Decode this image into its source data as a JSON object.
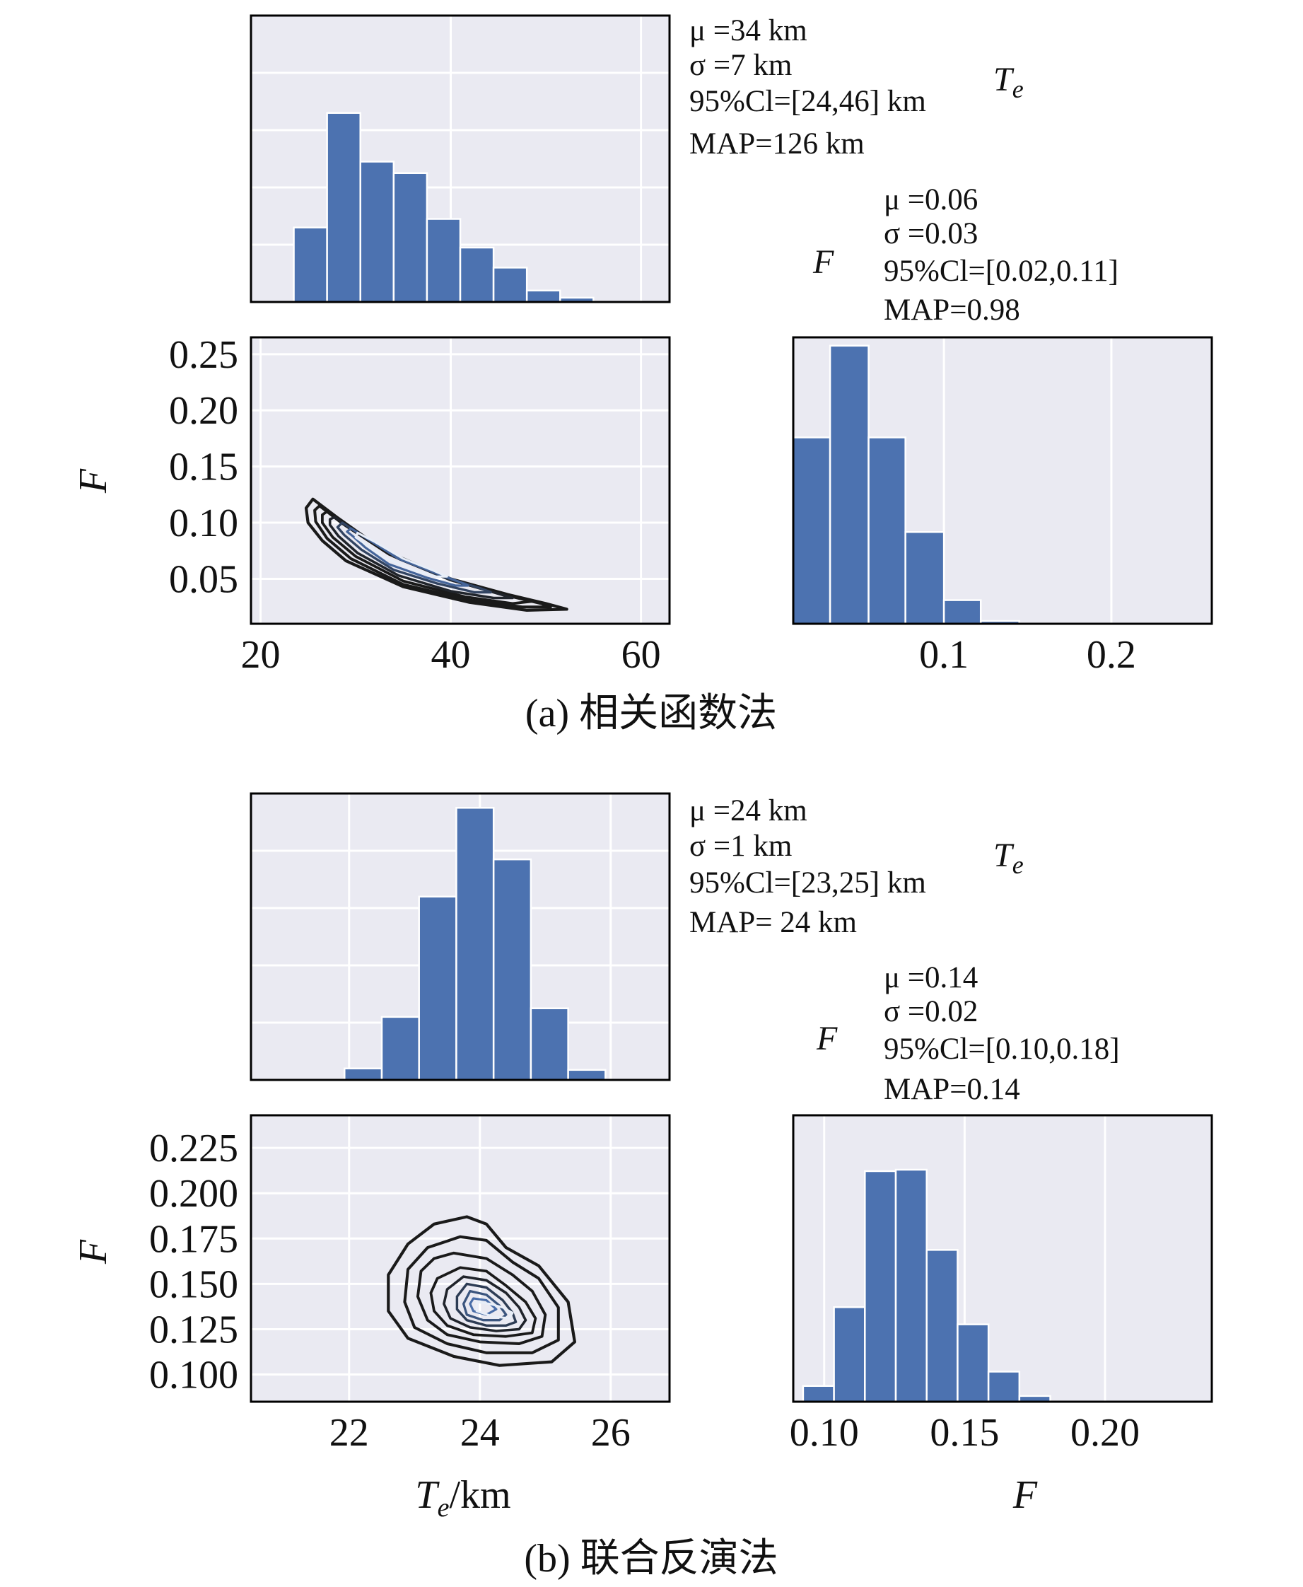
{
  "colors": {
    "bar": "#4c72b0",
    "panel_bg": "#eaeaf2",
    "grid": "#ffffff",
    "contour_dark": "#1a1a1a",
    "contour_light": "#4c72b0"
  },
  "panels": [
    {
      "caption": "(a) 相关函数法",
      "te_stats": [
        "μ =34 km",
        "σ =7 km",
        "95%Cl=[24,46] km",
        "MAP=126 km"
      ],
      "te_var": "Te",
      "f_stats": [
        "μ =0.06",
        "σ =0.03",
        "95%Cl=[0.02,0.11]",
        "MAP=0.98"
      ],
      "f_var": "F",
      "ylabel": "F",
      "xlabel_left": "",
      "xlabel_right": "",
      "chart_data": [
        {
          "type": "histogram",
          "name": "Te marginal",
          "xlim": [
            19,
            63
          ],
          "ylim": [
            0,
            1
          ],
          "bin_edges": [
            23.5,
            27,
            30.5,
            34,
            37.5,
            41,
            44.5,
            48,
            51.5,
            55
          ],
          "values": [
            0.26,
            0.66,
            0.49,
            0.45,
            0.29,
            0.19,
            0.12,
            0.04,
            0.015
          ]
        },
        {
          "type": "histogram",
          "name": "F marginal",
          "xlim": [
            0.01,
            0.26
          ],
          "ylim": [
            0,
            1.03
          ],
          "xticks": [
            0.1,
            0.2
          ],
          "bin_edges": [
            0.01,
            0.032,
            0.055,
            0.077,
            0.1,
            0.122,
            0.145,
            0.167
          ],
          "values": [
            0.67,
            1.0,
            0.67,
            0.33,
            0.085,
            0.01,
            0
          ]
        },
        {
          "type": "contour",
          "name": "Te-F joint density",
          "xlim": [
            19,
            63
          ],
          "ylim": [
            0.01,
            0.265
          ],
          "xticks": [
            20,
            40,
            60
          ],
          "yticks": [
            0.05,
            0.1,
            0.15,
            0.2,
            0.25
          ],
          "levels": [
            [
              [
                25.5,
                0.121
              ],
              [
                28.0,
                0.105
              ],
              [
                33.0,
                0.075
              ],
              [
                40.0,
                0.05
              ],
              [
                46.0,
                0.036
              ],
              [
                50.0,
                0.028
              ],
              [
                52.2,
                0.023
              ],
              [
                48.0,
                0.022
              ],
              [
                42.0,
                0.029
              ],
              [
                35.0,
                0.043
              ],
              [
                29.0,
                0.066
              ],
              [
                26.5,
                0.084
              ],
              [
                25.0,
                0.1
              ],
              [
                24.8,
                0.113
              ]
            ],
            [
              [
                26.2,
                0.115
              ],
              [
                28.5,
                0.1
              ],
              [
                33.5,
                0.072
              ],
              [
                40.0,
                0.049
              ],
              [
                46.0,
                0.035
              ],
              [
                49.5,
                0.028
              ],
              [
                50.5,
                0.025
              ],
              [
                47.5,
                0.025
              ],
              [
                42.0,
                0.031
              ],
              [
                35.0,
                0.045
              ],
              [
                29.5,
                0.068
              ],
              [
                27.0,
                0.086
              ],
              [
                25.8,
                0.101
              ],
              [
                25.7,
                0.111
              ]
            ],
            [
              [
                27.0,
                0.11
              ],
              [
                29.0,
                0.097
              ],
              [
                34.0,
                0.07
              ],
              [
                40.0,
                0.049
              ],
              [
                46.0,
                0.035
              ],
              [
                48.6,
                0.03
              ],
              [
                46.5,
                0.028
              ],
              [
                41.5,
                0.034
              ],
              [
                35.0,
                0.048
              ],
              [
                30.0,
                0.07
              ],
              [
                27.6,
                0.087
              ],
              [
                26.5,
                0.1
              ],
              [
                26.5,
                0.107
              ]
            ],
            [
              [
                27.8,
                0.105
              ],
              [
                29.6,
                0.094
              ],
              [
                34.5,
                0.068
              ],
              [
                40.0,
                0.049
              ],
              [
                44.5,
                0.038
              ],
              [
                46.5,
                0.033
              ],
              [
                44.5,
                0.033
              ],
              [
                40.0,
                0.039
              ],
              [
                34.5,
                0.053
              ],
              [
                30.2,
                0.073
              ],
              [
                28.2,
                0.088
              ],
              [
                27.3,
                0.098
              ],
              [
                27.3,
                0.103
              ]
            ],
            [
              [
                28.6,
                0.1
              ],
              [
                30.2,
                0.091
              ],
              [
                34.8,
                0.067
              ],
              [
                39.5,
                0.051
              ],
              [
                43.0,
                0.042
              ],
              [
                44.2,
                0.038
              ],
              [
                42.5,
                0.038
              ],
              [
                38.5,
                0.046
              ],
              [
                34.0,
                0.058
              ],
              [
                30.6,
                0.076
              ],
              [
                28.8,
                0.089
              ],
              [
                28.1,
                0.096
              ]
            ],
            [
              [
                29.5,
                0.095
              ],
              [
                31.0,
                0.087
              ],
              [
                34.5,
                0.068
              ],
              [
                38.5,
                0.055
              ],
              [
                41.0,
                0.047
              ],
              [
                41.8,
                0.044
              ],
              [
                40.5,
                0.044
              ],
              [
                37.5,
                0.051
              ],
              [
                33.5,
                0.063
              ],
              [
                31.0,
                0.078
              ],
              [
                29.7,
                0.088
              ],
              [
                29.1,
                0.092
              ]
            ],
            [
              [
                30.2,
                0.091
              ],
              [
                32.0,
                0.083
              ],
              [
                35.0,
                0.068
              ],
              [
                38.0,
                0.058
              ],
              [
                39.6,
                0.052
              ],
              [
                38.5,
                0.052
              ],
              [
                36.0,
                0.058
              ],
              [
                33.0,
                0.069
              ],
              [
                31.2,
                0.08
              ],
              [
                30.0,
                0.087
              ]
            ]
          ]
        }
      ]
    },
    {
      "caption": "(b) 联合反演法",
      "te_stats": [
        "μ =24 km",
        "σ =1 km",
        "95%Cl=[23,25] km",
        "MAP= 24 km"
      ],
      "te_var": "Te",
      "f_stats": [
        "μ =0.14",
        "σ =0.02",
        "95%Cl=[0.10,0.18]",
        "MAP=0.14"
      ],
      "f_var": "F",
      "ylabel": "F",
      "xlabel_left": "Te/km",
      "xlabel_right": "F",
      "chart_data": [
        {
          "type": "histogram",
          "name": "Te marginal",
          "xlim": [
            20.5,
            26.9
          ],
          "ylim": [
            0,
            1
          ],
          "bin_edges": [
            21.93,
            22.5,
            23.07,
            23.64,
            24.21,
            24.78,
            25.35,
            25.92
          ],
          "values": [
            0.04,
            0.22,
            0.64,
            0.95,
            0.77,
            0.25,
            0.035
          ]
        },
        {
          "type": "histogram",
          "name": "F marginal",
          "xlim": [
            0.089,
            0.238
          ],
          "ylim": [
            0,
            1
          ],
          "xticks": [
            0.1,
            0.15,
            0.2
          ],
          "bin_edges": [
            0.0925,
            0.1035,
            0.1145,
            0.1255,
            0.1365,
            0.1475,
            0.1585,
            0.1695,
            0.1805,
            0.1915,
            0.2025
          ],
          "values": [
            0.055,
            0.33,
            0.805,
            0.81,
            0.53,
            0.27,
            0.105,
            0.02,
            0,
            0
          ]
        },
        {
          "type": "contour",
          "name": "Te-F joint density",
          "xlim": [
            20.5,
            26.9
          ],
          "ylim": [
            0.085,
            0.243
          ],
          "xticks": [
            22,
            24,
            26
          ],
          "yticks": [
            0.1,
            0.125,
            0.15,
            0.175,
            0.2,
            0.225
          ],
          "levels": [
            [
              [
                23.8,
                0.187
              ],
              [
                24.1,
                0.183
              ],
              [
                24.4,
                0.17
              ],
              [
                24.9,
                0.16
              ],
              [
                25.35,
                0.14
              ],
              [
                25.45,
                0.118
              ],
              [
                25.1,
                0.107
              ],
              [
                24.3,
                0.105
              ],
              [
                23.6,
                0.11
              ],
              [
                22.9,
                0.12
              ],
              [
                22.6,
                0.135
              ],
              [
                22.6,
                0.155
              ],
              [
                22.9,
                0.172
              ],
              [
                23.3,
                0.183
              ]
            ],
            [
              [
                23.7,
                0.176
              ],
              [
                24.1,
                0.174
              ],
              [
                24.5,
                0.162
              ],
              [
                24.9,
                0.153
              ],
              [
                25.2,
                0.137
              ],
              [
                25.2,
                0.119
              ],
              [
                24.8,
                0.112
              ],
              [
                24.1,
                0.112
              ],
              [
                23.5,
                0.117
              ],
              [
                23.0,
                0.126
              ],
              [
                22.85,
                0.14
              ],
              [
                22.9,
                0.158
              ],
              [
                23.2,
                0.17
              ]
            ],
            [
              [
                23.6,
                0.167
              ],
              [
                24.1,
                0.164
              ],
              [
                24.5,
                0.155
              ],
              [
                24.8,
                0.146
              ],
              [
                25.0,
                0.133
              ],
              [
                24.95,
                0.121
              ],
              [
                24.6,
                0.117
              ],
              [
                24.0,
                0.118
              ],
              [
                23.5,
                0.122
              ],
              [
                23.2,
                0.13
              ],
              [
                23.05,
                0.143
              ],
              [
                23.1,
                0.157
              ],
              [
                23.3,
                0.164
              ]
            ],
            [
              [
                23.7,
                0.159
              ],
              [
                24.1,
                0.157
              ],
              [
                24.4,
                0.149
              ],
              [
                24.7,
                0.14
              ],
              [
                24.85,
                0.131
              ],
              [
                24.8,
                0.123
              ],
              [
                24.4,
                0.121
              ],
              [
                23.9,
                0.122
              ],
              [
                23.5,
                0.127
              ],
              [
                23.3,
                0.135
              ],
              [
                23.25,
                0.145
              ],
              [
                23.35,
                0.153
              ]
            ],
            [
              [
                23.75,
                0.154
              ],
              [
                24.1,
                0.152
              ],
              [
                24.4,
                0.145
              ],
              [
                24.6,
                0.137
              ],
              [
                24.7,
                0.13
              ],
              [
                24.6,
                0.125
              ],
              [
                24.25,
                0.124
              ],
              [
                23.85,
                0.126
              ],
              [
                23.55,
                0.131
              ],
              [
                23.45,
                0.139
              ],
              [
                23.5,
                0.147
              ]
            ],
            [
              [
                23.8,
                0.15
              ],
              [
                24.1,
                0.148
              ],
              [
                24.35,
                0.141
              ],
              [
                24.5,
                0.134
              ],
              [
                24.55,
                0.129
              ],
              [
                24.4,
                0.127
              ],
              [
                24.1,
                0.127
              ],
              [
                23.8,
                0.13
              ],
              [
                23.65,
                0.136
              ],
              [
                23.65,
                0.143
              ]
            ],
            [
              [
                23.85,
                0.146
              ],
              [
                24.1,
                0.144
              ],
              [
                24.3,
                0.138
              ],
              [
                24.4,
                0.133
              ],
              [
                24.3,
                0.13
              ],
              [
                24.05,
                0.13
              ],
              [
                23.8,
                0.133
              ],
              [
                23.75,
                0.139
              ]
            ],
            [
              [
                23.9,
                0.142
              ],
              [
                24.1,
                0.141
              ],
              [
                24.25,
                0.136
              ],
              [
                24.1,
                0.133
              ],
              [
                23.9,
                0.135
              ],
              [
                23.85,
                0.139
              ]
            ],
            [
              [
                23.95,
                0.14
              ],
              [
                24.15,
                0.139
              ],
              [
                24.35,
                0.137
              ],
              [
                24.5,
                0.134
              ],
              [
                24.45,
                0.131
              ],
              [
                24.2,
                0.132
              ],
              [
                23.95,
                0.135
              ]
            ]
          ]
        }
      ]
    }
  ]
}
